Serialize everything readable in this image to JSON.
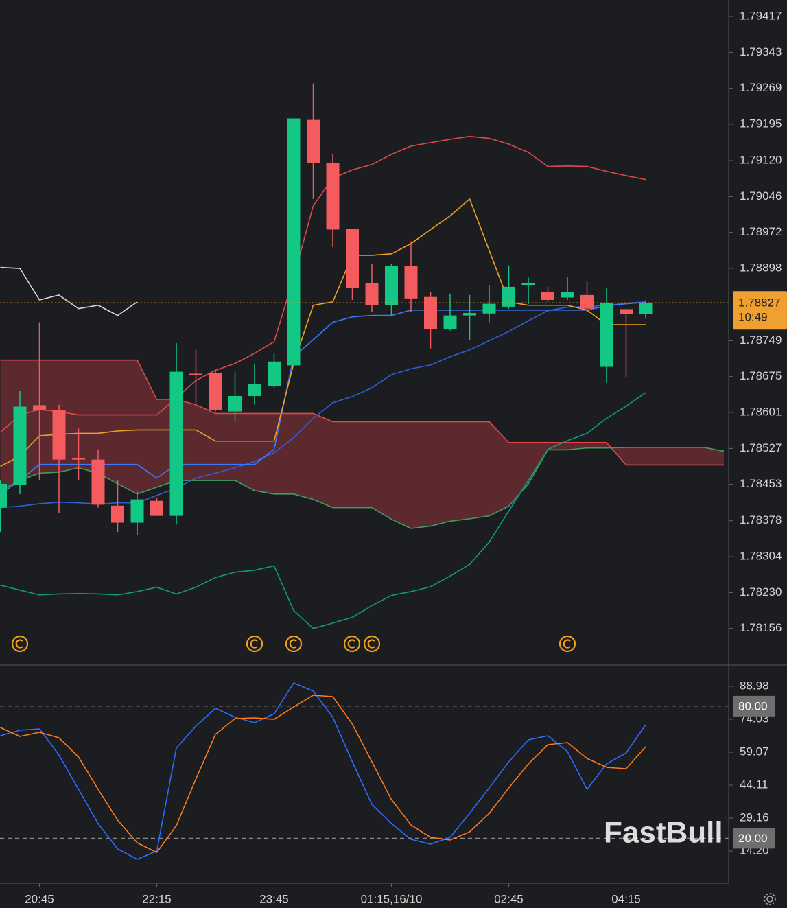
{
  "chart_data": [
    {
      "type": "candlestick",
      "categories": [
        null,
        null,
        "20:45",
        null,
        null,
        null,
        null,
        null,
        "22:15",
        null,
        null,
        null,
        null,
        null,
        "23:45",
        null,
        null,
        null,
        null,
        null,
        "01:15,16/10",
        null,
        null,
        null,
        null,
        null,
        "02:45",
        null,
        null,
        null,
        null,
        null,
        "04:15",
        null,
        null,
        null,
        null,
        null
      ],
      "open": [
        1.78405,
        1.78452,
        1.78616,
        1.78606,
        1.78507,
        1.78504,
        1.78409,
        1.78374,
        1.78419,
        1.78388,
        1.78681,
        1.78683,
        1.78603,
        1.78635,
        1.78655,
        1.78698,
        1.79204,
        1.79115,
        1.7898,
        1.78867,
        1.78822,
        1.78903,
        1.78839,
        1.78773,
        1.78801,
        1.78805,
        1.78819,
        1.78864,
        1.7885,
        1.78838,
        1.78843,
        1.78695,
        1.78814,
        1.78804,
        null,
        null,
        null,
        null
      ],
      "high": [
        1.78461,
        1.78645,
        1.78787,
        1.78617,
        1.78568,
        1.78525,
        1.78461,
        1.7844,
        1.78426,
        1.78744,
        1.7873,
        1.78688,
        1.78685,
        1.78702,
        1.78723,
        1.79207,
        1.79279,
        1.79133,
        1.7898,
        1.78907,
        1.78907,
        1.78954,
        1.7885,
        1.78846,
        1.78843,
        1.78864,
        1.78904,
        1.78879,
        1.7886,
        1.78881,
        1.78872,
        1.78857,
        1.78815,
        1.78832,
        null,
        null,
        null,
        null
      ],
      "low": [
        1.78355,
        1.78433,
        1.78461,
        1.78394,
        1.78461,
        1.78405,
        1.78355,
        1.78348,
        1.78388,
        1.7837,
        1.78617,
        1.78603,
        1.78582,
        1.78617,
        1.78652,
        1.78698,
        1.79041,
        1.78942,
        1.78833,
        1.78808,
        1.78801,
        1.78808,
        1.78733,
        1.7877,
        1.78751,
        1.78787,
        1.78815,
        1.78825,
        1.78829,
        1.78833,
        1.78808,
        1.78662,
        1.78674,
        1.78794,
        null,
        null,
        null,
        null
      ],
      "close": [
        1.78454,
        1.78613,
        1.78606,
        1.78504,
        1.78504,
        1.78411,
        1.78374,
        1.78422,
        1.78388,
        1.78685,
        1.78678,
        1.78606,
        1.78635,
        1.78659,
        1.78706,
        1.79207,
        1.79115,
        1.78978,
        1.78857,
        1.78822,
        1.78903,
        1.78836,
        1.78773,
        1.78801,
        1.78806,
        1.78825,
        1.7886,
        1.78867,
        1.78833,
        1.78849,
        1.78815,
        1.78826,
        1.78804,
        1.78827,
        null,
        null,
        null,
        null
      ],
      "up_color": "#13c784",
      "down_color": "#f35b5e",
      "ichimoku_cloud": {
        "fill": "#5c2a2e",
        "span_a": {
          "color": "#e0484c",
          "values": [
            1.78709,
            1.78709,
            1.78709,
            1.78709,
            1.78709,
            1.78709,
            1.78709,
            1.78709,
            1.78628,
            1.78628,
            1.78617,
            1.78599,
            1.78599,
            1.78599,
            1.78599,
            1.78599,
            1.78599,
            1.78582,
            1.78582,
            1.78582,
            1.78582,
            1.78582,
            1.78582,
            1.78582,
            1.78582,
            1.78582,
            1.78539,
            1.78539,
            1.78539,
            1.78539,
            1.78539,
            1.78539,
            1.78493,
            1.78493,
            1.78493,
            1.78493,
            1.78493,
            1.78493
          ]
        },
        "span_b": {
          "color": "#3e9e62",
          "values": [
            1.7844,
            1.78461,
            1.78476,
            1.78478,
            1.78487,
            1.78476,
            1.78454,
            1.78433,
            1.78447,
            1.78461,
            1.78461,
            1.78461,
            1.78461,
            1.7844,
            1.78433,
            1.78433,
            1.78422,
            1.78405,
            1.78405,
            1.78405,
            1.78381,
            1.78362,
            1.78367,
            1.78377,
            1.78382,
            1.78388,
            1.78408,
            1.78454,
            1.78524,
            1.78524,
            1.78528,
            1.78528,
            1.78529,
            1.78529,
            1.78529,
            1.78529,
            1.78529,
            1.78521
          ]
        }
      },
      "series": [
        {
          "color": "#e0474c",
          "values": [
            1.7856,
            1.78596,
            1.78607,
            1.78603,
            1.78596,
            1.78596,
            1.78596,
            1.78596,
            1.78596,
            1.78631,
            1.78667,
            1.78688,
            1.78702,
            1.78723,
            1.78747,
            1.78879,
            1.79027,
            1.79084,
            1.79101,
            1.79112,
            1.79133,
            1.7915,
            1.79157,
            1.79164,
            1.7917,
            1.79166,
            1.79154,
            1.79137,
            1.79108,
            1.79109,
            1.79108,
            1.79098,
            1.79089,
            1.79081,
            null,
            null,
            null,
            null
          ]
        },
        {
          "color": "#2f5fd6",
          "values": [
            1.78405,
            1.78408,
            1.78413,
            1.78416,
            1.78415,
            1.78412,
            1.78415,
            1.78415,
            1.7843,
            1.78445,
            1.78466,
            1.78476,
            1.78487,
            1.785,
            1.78518,
            1.78549,
            1.78589,
            1.78621,
            1.78634,
            1.78652,
            1.78679,
            1.78691,
            1.78699,
            1.78716,
            1.7873,
            1.78749,
            1.78768,
            1.7879,
            1.78811,
            1.78818,
            1.78819,
            1.78822,
            1.78826,
            1.78829,
            null,
            null,
            null,
            null
          ]
        },
        {
          "color": "#11997e",
          "values": [
            1.78245,
            1.78235,
            1.78225,
            1.78227,
            1.78228,
            1.78227,
            1.78225,
            1.78232,
            1.78241,
            1.78227,
            1.78241,
            1.78261,
            1.78272,
            1.78276,
            1.78285,
            1.78193,
            1.78156,
            1.78167,
            1.78179,
            1.78203,
            1.78224,
            1.78232,
            1.78242,
            1.78264,
            1.78288,
            1.78334,
            1.78398,
            1.78461,
            1.78525,
            1.78543,
            1.78558,
            1.78589,
            1.78614,
            1.78642,
            null,
            null,
            null,
            null
          ]
        },
        {
          "color": "#3b7bff",
          "values": [
            1.78433,
            1.78461,
            1.78494,
            1.78494,
            1.78494,
            1.78494,
            1.78494,
            1.78494,
            1.78466,
            1.78494,
            1.78494,
            1.78494,
            1.78494,
            1.78494,
            1.78525,
            1.78716,
            1.78751,
            1.78787,
            1.78798,
            1.78801,
            1.78801,
            1.78812,
            1.78812,
            1.78812,
            1.78812,
            1.78812,
            1.78812,
            1.78812,
            1.78812,
            1.78812,
            1.78812,
            1.78821,
            1.78825,
            1.78828,
            null,
            null,
            null,
            null
          ]
        },
        {
          "color": "#f0a020",
          "values": [
            1.7849,
            1.78511,
            1.78553,
            1.78556,
            1.78558,
            1.78558,
            1.78563,
            1.78565,
            1.78565,
            1.78565,
            1.78565,
            1.78542,
            1.78542,
            1.78542,
            1.78542,
            1.78702,
            1.78822,
            1.78829,
            1.78925,
            1.78925,
            1.78928,
            1.78949,
            1.78978,
            1.79006,
            1.79041,
            1.78935,
            1.78829,
            1.78822,
            1.78822,
            1.78822,
            1.78812,
            1.78782,
            1.78782,
            1.78782,
            null,
            null,
            null,
            null
          ]
        },
        {
          "color": "#d8d8d8",
          "values": [
            1.789,
            1.78898,
            1.78833,
            1.78843,
            1.78815,
            1.78822,
            1.78801,
            1.78829,
            null,
            null,
            null,
            null,
            null,
            null,
            null,
            null,
            null,
            null,
            null,
            null,
            null,
            null,
            null,
            null,
            null,
            null,
            null,
            null,
            null,
            null,
            null,
            null,
            null,
            null,
            null,
            null,
            null,
            null
          ]
        }
      ],
      "ylim": [
        1.78082,
        1.79451
      ],
      "yticks": [
        1.79417,
        1.79343,
        1.79269,
        1.79195,
        {
          "value": 1.7912,
          "label": "1.79120"
        },
        1.79046,
        1.78972,
        1.78898,
        1.78749,
        1.78675,
        1.78601,
        1.78527,
        1.78453,
        1.78378,
        1.78304,
        {
          "value": 1.7823,
          "label": "1.78230"
        },
        1.78156
      ],
      "price_tag": {
        "value": 1.78827,
        "countdown": "10:49",
        "color": "#f0a030"
      },
      "watermark": "FastBull"
    },
    {
      "type": "line",
      "series": [
        {
          "color": "#2f6bff",
          "values": [
            66.55,
            69.04,
            69.66,
            57.82,
            42.24,
            26.67,
            15.14,
            10.46,
            14.2,
            60.94,
            70.91,
            79.01,
            74.96,
            72.47,
            76.52,
            90.54,
            86.8,
            74.96,
            54.71,
            35.39,
            26.67,
            19.5,
            17.32,
            20.43,
            31.34,
            42.87,
            54.71,
            64.68,
            66.55,
            59.38,
            42.24,
            53.77,
            58.76,
            71.53,
            null,
            null,
            null,
            null
          ]
        },
        {
          "color": "#ff7a1a",
          "values": [
            70.29,
            66.24,
            68.1,
            65.61,
            56.89,
            42.24,
            28.22,
            17.94,
            13.58,
            25.73,
            46.92,
            67.17,
            74.34,
            74.65,
            74.02,
            79.63,
            84.93,
            84.31,
            71.84,
            54.71,
            37.57,
            26.04,
            20.43,
            19.19,
            22.93,
            31.34,
            42.87,
            53.77,
            62.5,
            63.43,
            56.27,
            52.21,
            51.59,
            61.56,
            null,
            null,
            null,
            null
          ]
        }
      ],
      "ylim": [
        -0.44,
        98.33
      ],
      "yticks": [
        88.98,
        74.03,
        59.07,
        44.11,
        29.16,
        {
          "value": 14.2,
          "label": "14.20"
        }
      ],
      "levels": [
        {
          "value": 80,
          "label": "80.00"
        },
        {
          "value": 20,
          "label": "20.00"
        }
      ]
    }
  ]
}
